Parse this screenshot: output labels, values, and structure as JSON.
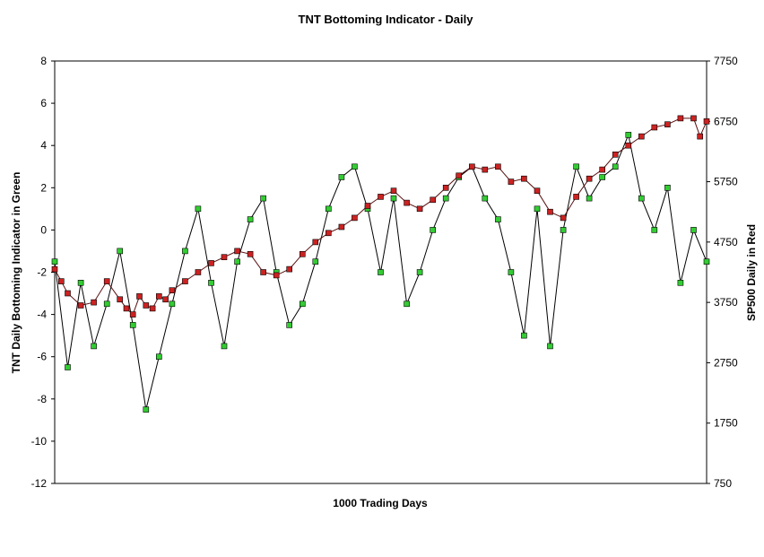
{
  "chart_data": {
    "type": "line",
    "title": "TNT Bottoming Indicator - Daily",
    "xlabel": "1000 Trading Days",
    "ylabel": "TNT Daily Bottoming Indicator in Green",
    "y2label": "SP500 Daily in Red",
    "xlim": [
      0,
      1000
    ],
    "ylim": [
      -12,
      8
    ],
    "y2lim": [
      750,
      7750
    ],
    "y_ticks": [
      "8",
      "6",
      "4",
      "2",
      "0",
      "-2",
      "-4",
      "-6",
      "-8",
      "-10",
      "-12"
    ],
    "y2_ticks": [
      "7750",
      "6750",
      "5750",
      "4750",
      "3750",
      "2750",
      "1750",
      "750"
    ],
    "colors": {
      "indicator": "#33cc33",
      "sp500": "#cc2222",
      "line": "#000000"
    },
    "series": [
      {
        "name": "TNT Daily Bottoming Indicator",
        "axis": "left",
        "x": [
          0,
          20,
          40,
          60,
          80,
          100,
          120,
          140,
          160,
          180,
          200,
          220,
          240,
          260,
          280,
          300,
          320,
          340,
          360,
          380,
          400,
          420,
          440,
          460,
          480,
          500,
          520,
          540,
          560,
          580,
          600,
          620,
          640,
          660,
          680,
          700,
          720,
          740,
          760,
          780,
          800,
          820,
          840,
          860,
          880,
          900,
          920,
          940,
          960,
          980,
          1000
        ],
        "values": [
          -1.5,
          -6.5,
          -2.5,
          -5.5,
          -3.5,
          -1.0,
          -4.5,
          -8.5,
          -6.0,
          -3.5,
          -1.0,
          1.0,
          -2.5,
          -5.5,
          -1.5,
          0.5,
          1.5,
          -2.0,
          -4.5,
          -3.5,
          -1.5,
          1.0,
          2.5,
          3.0,
          1.0,
          -2.0,
          1.5,
          -3.5,
          -2.0,
          0.0,
          1.5,
          2.5,
          3.0,
          1.5,
          0.5,
          -2.0,
          -5.0,
          1.0,
          -5.5,
          0.0,
          3.0,
          1.5,
          2.5,
          3.0,
          4.5,
          1.5,
          0.0,
          2.0,
          -2.5,
          0.0,
          -1.5
        ]
      },
      {
        "name": "SP500 Daily",
        "axis": "right",
        "x": [
          0,
          10,
          20,
          40,
          60,
          80,
          100,
          110,
          120,
          130,
          140,
          150,
          160,
          170,
          180,
          200,
          220,
          240,
          260,
          280,
          300,
          320,
          340,
          360,
          380,
          400,
          420,
          440,
          460,
          480,
          500,
          520,
          540,
          560,
          580,
          600,
          620,
          640,
          660,
          680,
          700,
          720,
          740,
          760,
          780,
          800,
          820,
          840,
          860,
          880,
          900,
          920,
          940,
          960,
          980,
          990,
          1000
        ],
        "values": [
          4300,
          4100,
          3900,
          3700,
          3750,
          4100,
          3800,
          3650,
          3550,
          3850,
          3700,
          3650,
          3850,
          3800,
          3950,
          4100,
          4250,
          4400,
          4500,
          4600,
          4550,
          4250,
          4200,
          4300,
          4550,
          4750,
          4900,
          5000,
          5150,
          5350,
          5500,
          5600,
          5400,
          5300,
          5450,
          5650,
          5850,
          6000,
          5950,
          6000,
          5750,
          5800,
          5600,
          5250,
          5150,
          5500,
          5800,
          5950,
          6200,
          6350,
          6500,
          6650,
          6700,
          6800,
          6800,
          6500,
          6750
        ]
      }
    ]
  }
}
